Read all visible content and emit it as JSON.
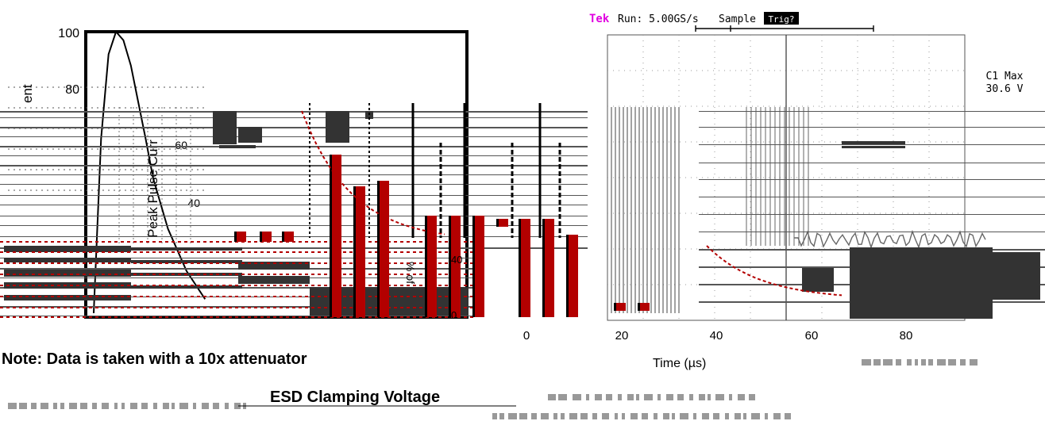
{
  "pulse_chart": {
    "y_ticks": [
      "100",
      "80",
      "60",
      "40"
    ],
    "y_label_fragment": "ent",
    "y_label_fragment2": "Peak Pulse Curr",
    "pct_label": "% of",
    "small_ticks": [
      "40",
      "0"
    ]
  },
  "time_axis": {
    "ticks": [
      "0",
      "20",
      "40",
      "60",
      "80"
    ],
    "label": "Time (µs)"
  },
  "scope": {
    "brand": "Tek",
    "run_label": "Run: 5.00GS/s",
    "mode_label": "Sample",
    "trig_label": "Trig?",
    "measure_name": "C1 Max",
    "measure_value": "30.6 V"
  },
  "note": "Note: Data is taken with a 10x attenuator",
  "clamp_title": "ESD Clamping Voltage",
  "colors": {
    "bar_red": "#b30000",
    "ink": "#000000",
    "tek_magenta": "#e000e0",
    "scope_grid": "#9a9a9a"
  },
  "chart_data": {
    "type": "line",
    "xlabel": "Time (µs)",
    "ylabel": "Peak Pulse Current",
    "ylim": [
      0,
      100
    ],
    "series": [
      {
        "x": [
          0,
          2,
          4,
          6,
          8,
          10,
          12,
          14,
          16,
          20,
          25,
          30
        ],
        "y": [
          0,
          62,
          92,
          100,
          97,
          88,
          75,
          62,
          48,
          30,
          15,
          5
        ]
      }
    ]
  }
}
